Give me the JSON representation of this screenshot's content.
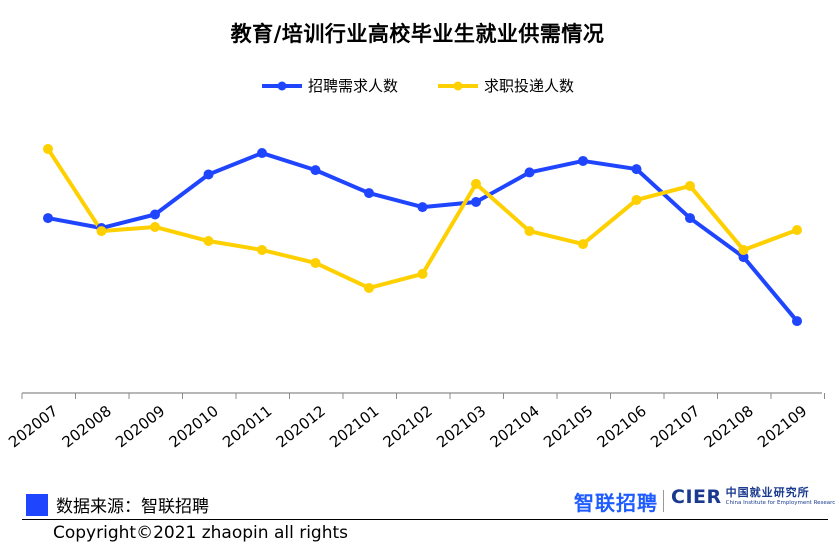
{
  "chart_data": {
    "type": "line",
    "title": "教育/培训行业高校毕业生就业供需情况",
    "categories": [
      "202007",
      "202008",
      "202009",
      "202010",
      "202011",
      "202012",
      "202101",
      "202102",
      "202103",
      "202104",
      "202105",
      "202106",
      "202107",
      "202108",
      "202109"
    ],
    "series": [
      {
        "name": "招聘需求人数",
        "color": "#1f45ff",
        "values": [
          0.686,
          0.647,
          0.7,
          0.857,
          0.941,
          0.874,
          0.784,
          0.729,
          0.749,
          0.865,
          0.91,
          0.878,
          0.686,
          0.533,
          0.282
        ]
      },
      {
        "name": "求职投递人数",
        "color": "#ffd000",
        "values": [
          0.957,
          0.635,
          0.651,
          0.596,
          0.561,
          0.51,
          0.412,
          0.467,
          0.82,
          0.635,
          0.584,
          0.757,
          0.812,
          0.561,
          0.639
        ]
      }
    ],
    "legend_position": "top-center",
    "grid": false,
    "y_axis_visible": false
  },
  "footer": {
    "source": "数据来源：智联招聘",
    "copyright": "Copyright©2021 zhaopin all rights",
    "logo_zhaopin": "智联招聘",
    "logo_cier": "CIER",
    "logo_cier_cn": "中国就业研究所",
    "logo_cier_en": "China Institute for Employment Research",
    "source_color": "#1f45ff"
  }
}
